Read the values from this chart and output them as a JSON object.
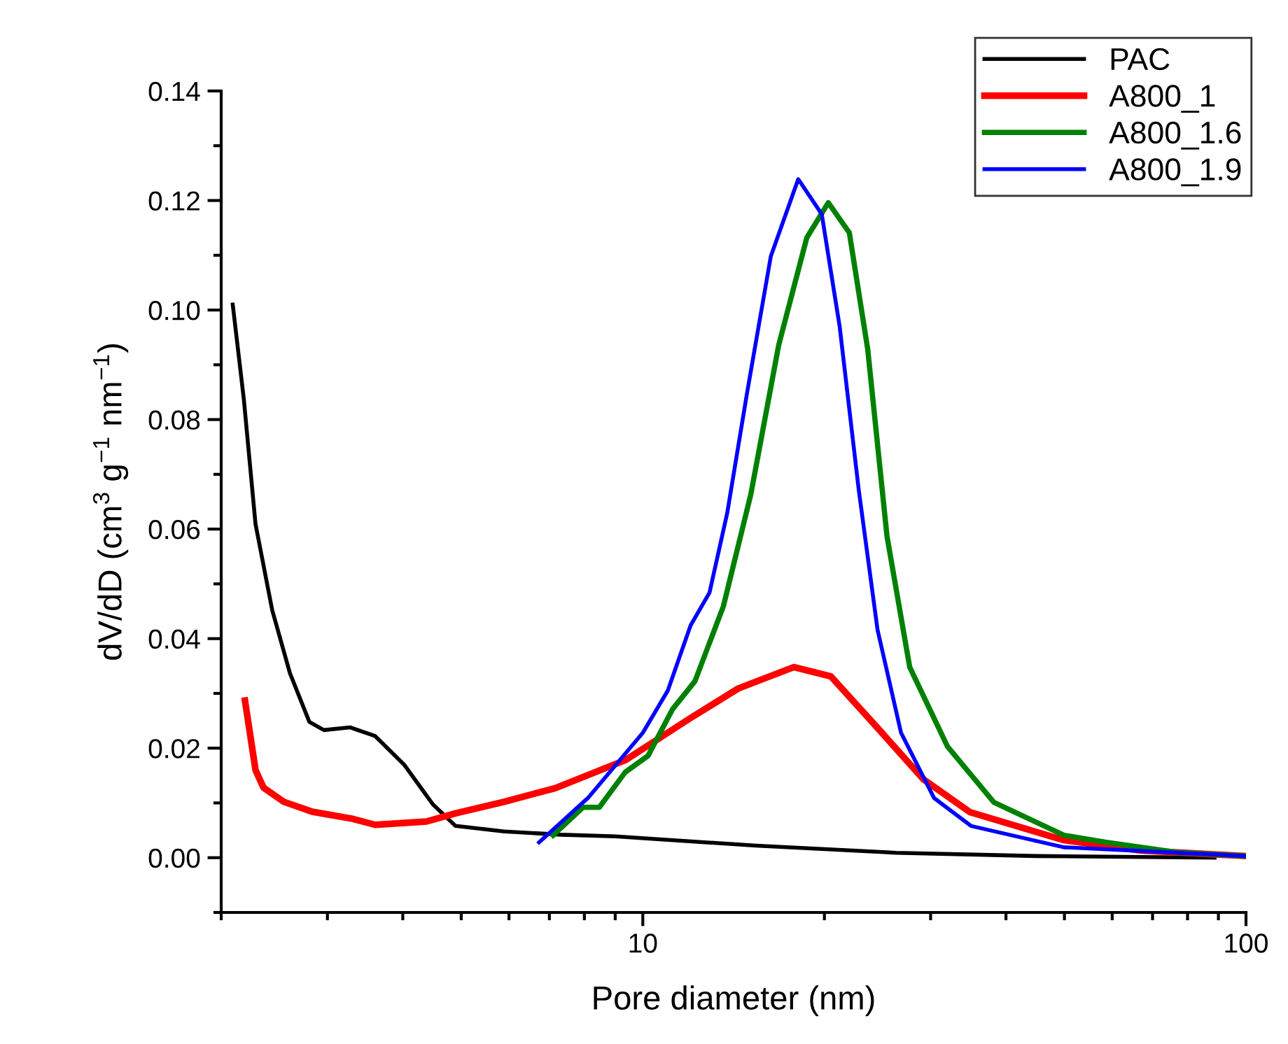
{
  "chart_data": {
    "type": "line",
    "xlabel": "Pore diameter (nm)",
    "ylabel": "dV/dD (cm$^{3}$ g$^{−1}$ nm$^{−1}$)",
    "log": "x",
    "xlim": [
      2,
      100
    ],
    "ylim": [
      -0.01,
      0.14
    ],
    "xticks": [
      {
        "value": 2,
        "label": null
      },
      {
        "value": 3,
        "label": null
      },
      {
        "value": 4,
        "label": null
      },
      {
        "value": 5,
        "label": null
      },
      {
        "value": 6,
        "label": null
      },
      {
        "value": 7,
        "label": null
      },
      {
        "value": 8,
        "label": null
      },
      {
        "value": 9,
        "label": null
      },
      10,
      {
        "value": 20,
        "label": null
      },
      {
        "value": 30,
        "label": null
      },
      {
        "value": 40,
        "label": null
      },
      {
        "value": 50,
        "label": null
      },
      {
        "value": 60,
        "label": null
      },
      {
        "value": 70,
        "label": null
      },
      {
        "value": 80,
        "label": null
      },
      {
        "value": 90,
        "label": null
      },
      100
    ],
    "yticks": [
      {
        "value": -0.01,
        "label": null
      },
      {
        "value": 0,
        "label": "0.00"
      },
      {
        "value": 0.01,
        "label": null
      },
      {
        "value": 0.02,
        "label": "0.02"
      },
      {
        "value": 0.03,
        "label": null
      },
      {
        "value": 0.04,
        "label": "0.04"
      },
      {
        "value": 0.05,
        "label": null
      },
      {
        "value": 0.06,
        "label": "0.06"
      },
      {
        "value": 0.07,
        "label": null
      },
      {
        "value": 0.08,
        "label": "0.08"
      },
      {
        "value": 0.09,
        "label": null
      },
      {
        "value": 0.1,
        "label": "0.10"
      },
      {
        "value": 0.11,
        "label": null
      },
      {
        "value": 0.12,
        "label": "0.12"
      },
      {
        "value": 0.13,
        "label": null
      },
      {
        "value": 0.14,
        "label": "0.14"
      }
    ],
    "grid": false,
    "legend": "top right",
    "marker": "none",
    "line_style": "solid",
    "series": [
      {
        "name": "PAC",
        "color": "#000000",
        "x": [
          2.09,
          2.18,
          2.28,
          2.43,
          2.6,
          2.8,
          2.96,
          3.27,
          3.6,
          4.02,
          4.49,
          4.89,
          5.89,
          7.3,
          9.0,
          15.4,
          26.3,
          44.9,
          88.7
        ],
        "values": [
          0.101,
          0.0838,
          0.0609,
          0.0452,
          0.0337,
          0.0248,
          0.0233,
          0.0238,
          0.0222,
          0.017,
          0.0097,
          0.0058,
          0.0048,
          0.0042,
          0.0039,
          0.0022,
          0.0009,
          0.0003,
          0.0
        ]
      },
      {
        "name": "A800_1",
        "color": "#ff0000",
        "x": [
          2.19,
          2.28,
          2.35,
          2.54,
          2.83,
          3.3,
          3.6,
          4.38,
          4.89,
          5.89,
          7.16,
          9.35,
          12.0,
          14.4,
          17.8,
          20.5,
          24.5,
          29.2,
          34.9,
          49.9,
          67,
          100
        ],
        "values": [
          0.0287,
          0.016,
          0.0128,
          0.0102,
          0.0084,
          0.0071,
          0.006,
          0.0066,
          0.0081,
          0.0102,
          0.0127,
          0.0178,
          0.0255,
          0.0309,
          0.0348,
          0.0331,
          0.0237,
          0.0143,
          0.0083,
          0.0032,
          0.0013,
          0.0003
        ]
      },
      {
        "name": "A800_1.6",
        "color": "#008000",
        "x": [
          7.1,
          7.96,
          8.47,
          9.35,
          10.2,
          11.2,
          12.2,
          13.6,
          15.1,
          16.8,
          18.7,
          20.3,
          22.0,
          23.6,
          25.4,
          27.7,
          32.0,
          38.2,
          49.9,
          58.6,
          76.6,
          100
        ],
        "values": [
          0.0041,
          0.0092,
          0.0092,
          0.0156,
          0.0186,
          0.0271,
          0.0322,
          0.0459,
          0.0663,
          0.0936,
          0.1132,
          0.1196,
          0.1141,
          0.0928,
          0.0587,
          0.0348,
          0.0203,
          0.0101,
          0.0041,
          0.0028,
          0.001,
          0.0003
        ]
      },
      {
        "name": "A800_1.9",
        "color": "#0000ff",
        "x": [
          6.73,
          8.11,
          10.0,
          11.0,
          12.0,
          12.9,
          13.8,
          14.9,
          16.3,
          18.1,
          19.8,
          21.2,
          22.8,
          24.5,
          26.8,
          30.4,
          35.0,
          49.9,
          100
        ],
        "values": [
          0.0028,
          0.0109,
          0.0228,
          0.0305,
          0.0424,
          0.0484,
          0.0629,
          0.0851,
          0.1098,
          0.1239,
          0.1175,
          0.097,
          0.0672,
          0.0416,
          0.0228,
          0.0109,
          0.0058,
          0.0019,
          0.0003
        ]
      }
    ]
  }
}
